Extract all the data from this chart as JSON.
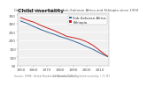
{
  "title": "Child mortality",
  "subtitle": "Declining child mortality in Sub-Saharan Africa and Ethiopia since 1950",
  "bg_color": "#ffffff",
  "plot_bg_color": "#f0f0f0",
  "grid_color": "#ffffff",
  "years": [
    1950,
    1955,
    1960,
    1965,
    1970,
    1975,
    1980,
    1985,
    1990,
    1995,
    2000,
    2005,
    2010,
    2015,
    2016
  ],
  "sub_saharan": [
    315,
    300,
    282,
    265,
    250,
    237,
    222,
    210,
    196,
    181,
    163,
    146,
    126,
    107,
    103
  ],
  "ethiopia": [
    335,
    320,
    308,
    290,
    274,
    260,
    242,
    224,
    216,
    207,
    192,
    170,
    140,
    110,
    106
  ],
  "line_color_ssa": "#336699",
  "line_color_eth": "#cc2222",
  "legend_label_ssa": "Sub-Saharan Africa",
  "legend_label_eth": "Ethiopia",
  "ylim": [
    50,
    360
  ],
  "xlim": [
    1948,
    2017
  ],
  "yticks": [
    50,
    100,
    150,
    200,
    250,
    300,
    350
  ],
  "xticks": [
    1950,
    1960,
    1970,
    1980,
    1990,
    2000,
    2010
  ],
  "title_fontsize": 4.5,
  "subtitle_fontsize": 2.8,
  "axis_fontsize": 3.0,
  "legend_fontsize": 2.8,
  "linewidth": 0.7,
  "source_left": "Source: IHME, Global Burden of Disease (2016)",
  "source_right": "OurWorldInData.org/child-mortality • CC BY"
}
